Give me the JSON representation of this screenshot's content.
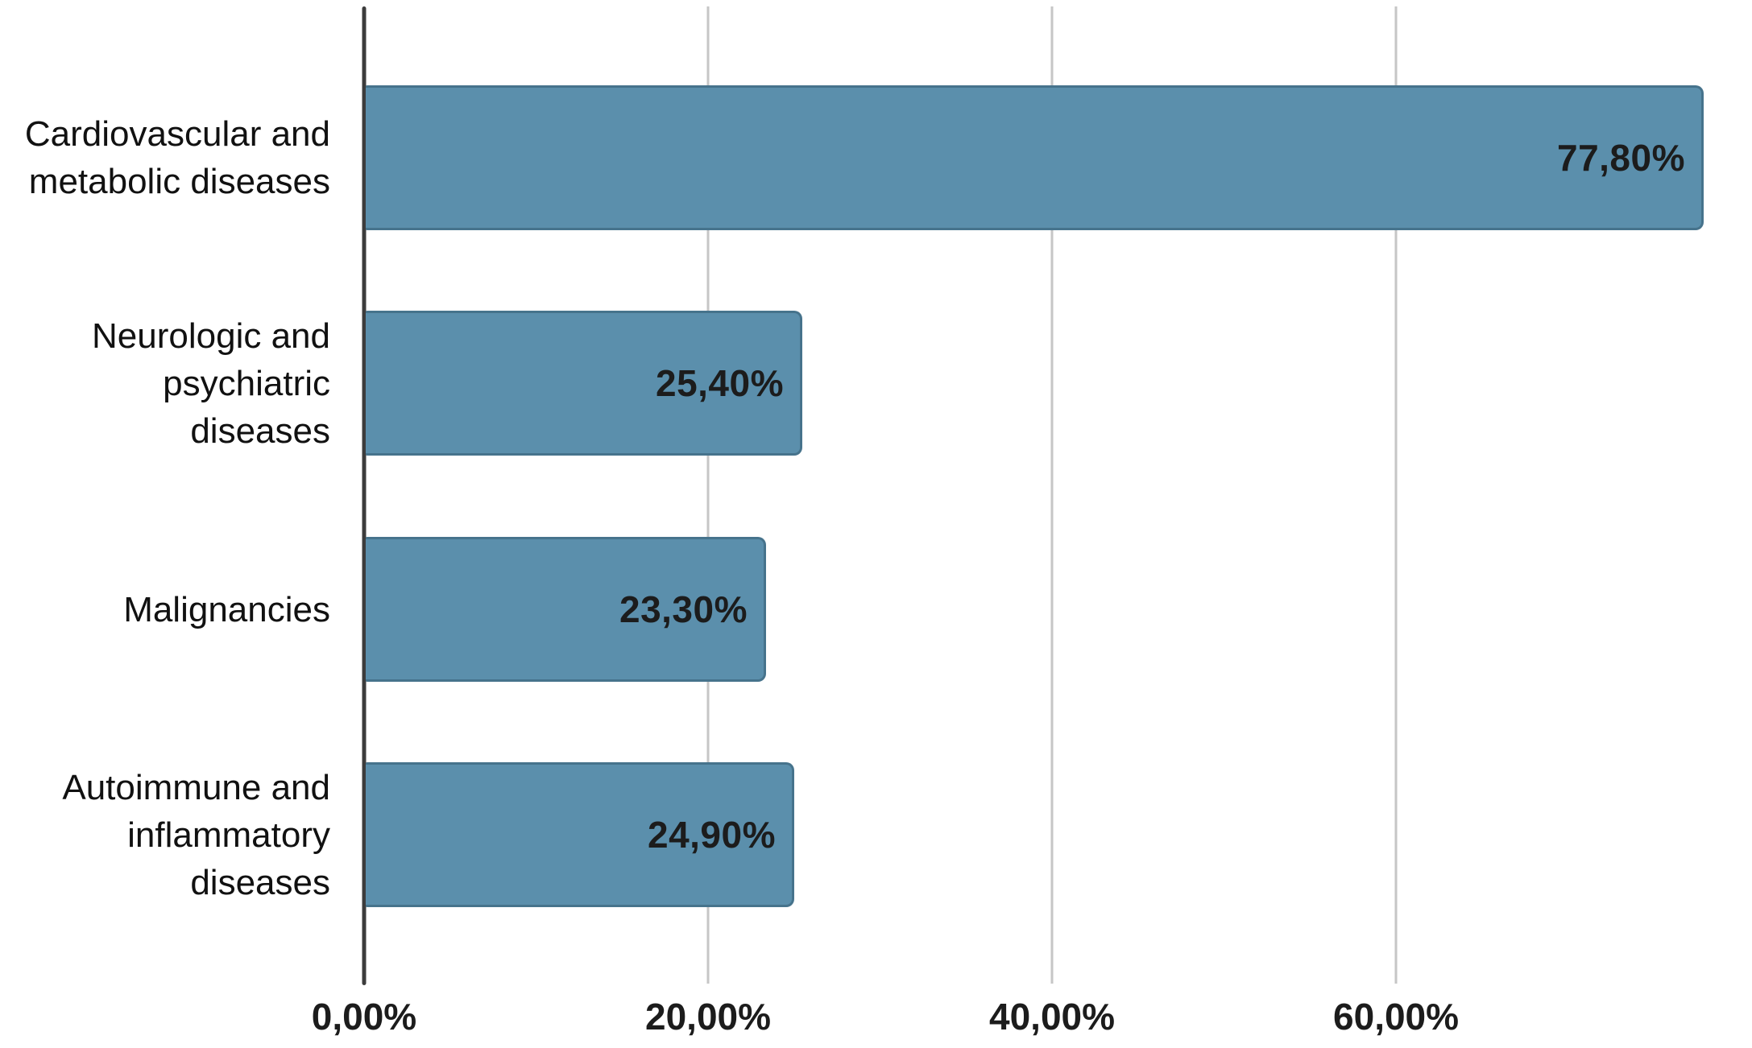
{
  "chart_data": {
    "type": "bar",
    "orientation": "horizontal",
    "title": "",
    "xlabel": "",
    "ylabel": "",
    "categories": [
      "Cardiovascular and metabolic diseases",
      "Neurologic and psychiatric diseases",
      "Malignancies",
      "Autoimmune and inflammatory diseases"
    ],
    "category_lines": [
      [
        "Cardiovascular and",
        "metabolic diseases"
      ],
      [
        "Neurologic and",
        "psychiatric",
        "diseases"
      ],
      [
        "Malignancies"
      ],
      [
        "Autoimmune and",
        "inflammatory",
        "diseases"
      ]
    ],
    "values": [
      77.8,
      25.4,
      23.3,
      24.9
    ],
    "value_labels": [
      "77,80%",
      "25,40%",
      "23,30%",
      "24,90%"
    ],
    "x_ticks": [
      0,
      20,
      40,
      60
    ],
    "x_tick_labels": [
      "0,00%",
      "20,00%",
      "40,00%",
      "60,00%"
    ],
    "xlim": [
      0,
      80.7
    ],
    "grid": "vertical",
    "legend": "none",
    "bar_color": "#5b8fac",
    "bar_border_color": "#46738c",
    "axis_line_color": "#3c3c3c",
    "gridline_color": "#c6c6c6",
    "text_color": "#1c1c1c"
  }
}
